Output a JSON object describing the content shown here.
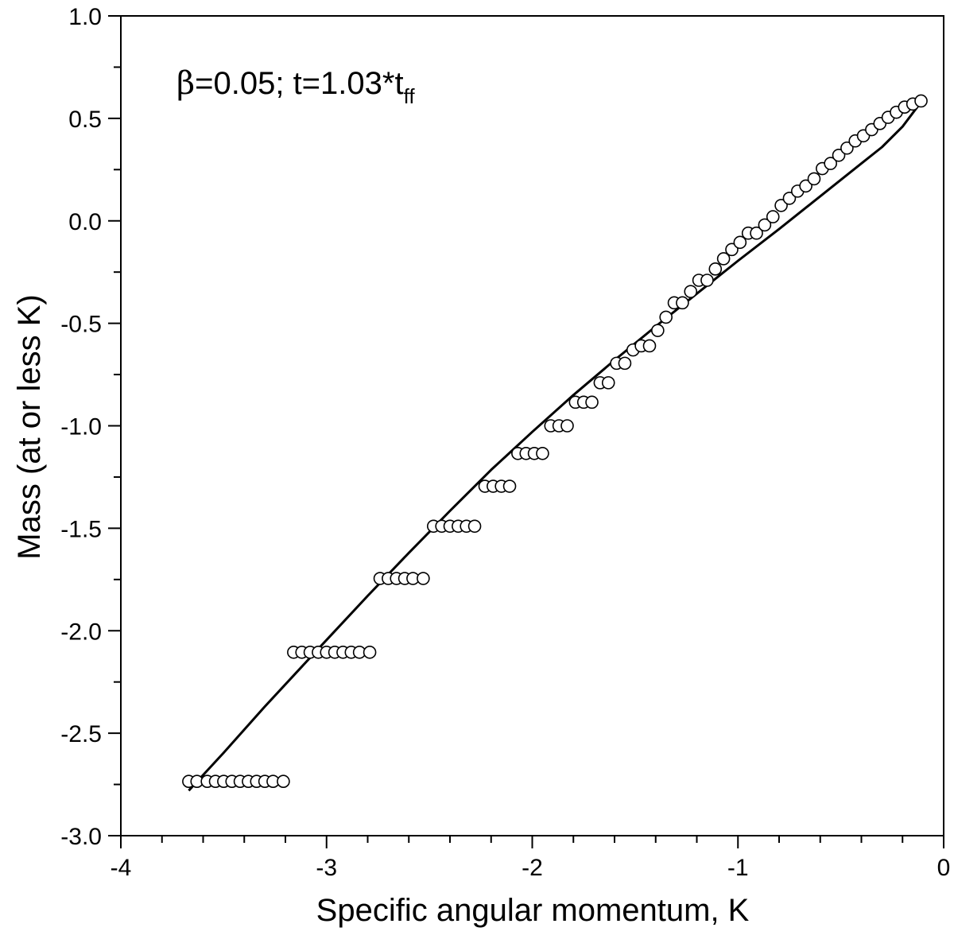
{
  "chart_data": {
    "type": "scatter",
    "xlabel": "Specific angular momentum, K",
    "ylabel": "Mass (at or less K)",
    "xlim": [
      -4,
      0
    ],
    "ylim": [
      -3.0,
      1.0
    ],
    "x_ticks": [
      "-4",
      "-3",
      "-2",
      "-1",
      "0"
    ],
    "y_ticks": [
      "-3.0",
      "-2.5",
      "-2.0",
      "-1.5",
      "-1.0",
      "-0.5",
      "0.0",
      "0.5",
      "1.0"
    ],
    "grid": false,
    "legend": "none",
    "annotation": {
      "greek": "β",
      "main": "=0.05;  t=1.03*t",
      "sub": "ff"
    },
    "series": [
      {
        "style": "open-circle markers",
        "points": [
          [
            -3.67,
            -2.735
          ],
          [
            -3.63,
            -2.735
          ],
          [
            -3.58,
            -2.735
          ],
          [
            -3.54,
            -2.735
          ],
          [
            -3.5,
            -2.735
          ],
          [
            -3.46,
            -2.735
          ],
          [
            -3.42,
            -2.735
          ],
          [
            -3.38,
            -2.735
          ],
          [
            -3.34,
            -2.735
          ],
          [
            -3.3,
            -2.735
          ],
          [
            -3.26,
            -2.735
          ],
          [
            -3.21,
            -2.735
          ],
          [
            -3.16,
            -2.105
          ],
          [
            -3.12,
            -2.105
          ],
          [
            -3.08,
            -2.105
          ],
          [
            -3.04,
            -2.105
          ],
          [
            -3.0,
            -2.105
          ],
          [
            -2.96,
            -2.105
          ],
          [
            -2.92,
            -2.105
          ],
          [
            -2.88,
            -2.105
          ],
          [
            -2.84,
            -2.105
          ],
          [
            -2.79,
            -2.105
          ],
          [
            -2.74,
            -1.745
          ],
          [
            -2.7,
            -1.745
          ],
          [
            -2.66,
            -1.745
          ],
          [
            -2.62,
            -1.745
          ],
          [
            -2.58,
            -1.745
          ],
          [
            -2.53,
            -1.745
          ],
          [
            -2.48,
            -1.49
          ],
          [
            -2.44,
            -1.49
          ],
          [
            -2.4,
            -1.49
          ],
          [
            -2.36,
            -1.49
          ],
          [
            -2.32,
            -1.49
          ],
          [
            -2.28,
            -1.49
          ],
          [
            -2.23,
            -1.295
          ],
          [
            -2.19,
            -1.295
          ],
          [
            -2.15,
            -1.295
          ],
          [
            -2.11,
            -1.295
          ],
          [
            -2.07,
            -1.135
          ],
          [
            -2.03,
            -1.135
          ],
          [
            -1.99,
            -1.135
          ],
          [
            -1.95,
            -1.135
          ],
          [
            -1.91,
            -1.0
          ],
          [
            -1.87,
            -1.0
          ],
          [
            -1.83,
            -1.0
          ],
          [
            -1.79,
            -0.885
          ],
          [
            -1.75,
            -0.885
          ],
          [
            -1.71,
            -0.885
          ],
          [
            -1.67,
            -0.79
          ],
          [
            -1.63,
            -0.79
          ],
          [
            -1.59,
            -0.695
          ],
          [
            -1.55,
            -0.695
          ],
          [
            -1.51,
            -0.63
          ],
          [
            -1.47,
            -0.61
          ],
          [
            -1.43,
            -0.61
          ],
          [
            -1.39,
            -0.535
          ],
          [
            -1.35,
            -0.47
          ],
          [
            -1.31,
            -0.4
          ],
          [
            -1.27,
            -0.4
          ],
          [
            -1.23,
            -0.345
          ],
          [
            -1.19,
            -0.29
          ],
          [
            -1.15,
            -0.29
          ],
          [
            -1.11,
            -0.235
          ],
          [
            -1.07,
            -0.185
          ],
          [
            -1.03,
            -0.14
          ],
          [
            -0.99,
            -0.105
          ],
          [
            -0.95,
            -0.06
          ],
          [
            -0.91,
            -0.06
          ],
          [
            -0.87,
            -0.02
          ],
          [
            -0.83,
            0.02
          ],
          [
            -0.79,
            0.075
          ],
          [
            -0.75,
            0.11
          ],
          [
            -0.71,
            0.145
          ],
          [
            -0.67,
            0.17
          ],
          [
            -0.63,
            0.205
          ],
          [
            -0.59,
            0.255
          ],
          [
            -0.55,
            0.28
          ],
          [
            -0.51,
            0.32
          ],
          [
            -0.47,
            0.355
          ],
          [
            -0.43,
            0.39
          ],
          [
            -0.39,
            0.415
          ],
          [
            -0.35,
            0.445
          ],
          [
            -0.31,
            0.475
          ],
          [
            -0.27,
            0.505
          ],
          [
            -0.23,
            0.53
          ],
          [
            -0.19,
            0.555
          ],
          [
            -0.15,
            0.57
          ],
          [
            -0.11,
            0.585
          ]
        ]
      },
      {
        "style": "solid line",
        "points": [
          [
            -3.67,
            -2.78
          ],
          [
            -3.5,
            -2.595
          ],
          [
            -3.3,
            -2.37
          ],
          [
            -3.0,
            -2.045
          ],
          [
            -2.8,
            -1.83
          ],
          [
            -2.6,
            -1.62
          ],
          [
            -2.4,
            -1.415
          ],
          [
            -2.2,
            -1.215
          ],
          [
            -2.0,
            -1.03
          ],
          [
            -1.8,
            -0.85
          ],
          [
            -1.6,
            -0.68
          ],
          [
            -1.4,
            -0.515
          ],
          [
            -1.2,
            -0.355
          ],
          [
            -1.0,
            -0.195
          ],
          [
            -0.8,
            -0.04
          ],
          [
            -0.6,
            0.12
          ],
          [
            -0.4,
            0.28
          ],
          [
            -0.3,
            0.36
          ],
          [
            -0.2,
            0.46
          ],
          [
            -0.11,
            0.58
          ]
        ]
      }
    ]
  }
}
